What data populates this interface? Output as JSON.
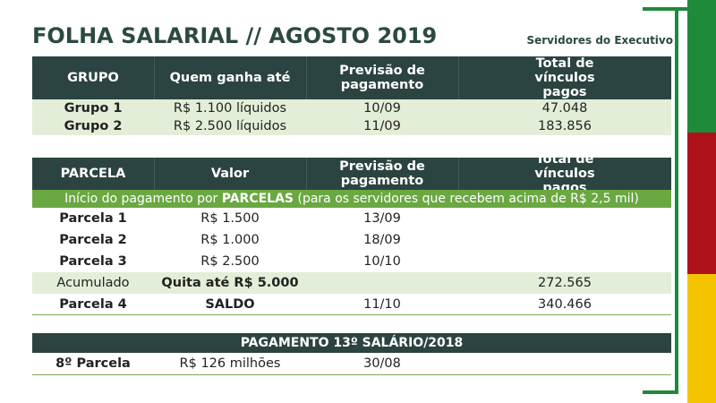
{
  "title": "FOLHA SALARIAL // AGOSTO 2019",
  "subtitle": "Servidores do Executivo",
  "colors": {
    "header_bg": "#2c4441",
    "row_highlight": "#e3eed8",
    "banner_bg": "#6aa842",
    "title_color": "#2c4a3e",
    "flag_green": "#1f8a3a",
    "flag_red": "#b0121b",
    "flag_yellow": "#f5c400"
  },
  "table1": {
    "headers": [
      "GRUPO",
      "Quem ganha até",
      "Previsão de pagamento",
      "Total de vínculos pagos"
    ],
    "rows": [
      [
        "Grupo 1",
        "R$ 1.100 líquidos",
        "10/09",
        "47.048"
      ],
      [
        "Grupo 2",
        "R$ 2.500 líquidos",
        "11/09",
        "183.856"
      ]
    ]
  },
  "table2": {
    "headers": [
      "PARCELA",
      "Valor",
      "Previsão de pagamento",
      "Total de vínculos pagos"
    ],
    "banner_prefix": "Início do pagamento por ",
    "banner_bold": "PARCELAS",
    "banner_suffix": " (para os servidores que recebem acima de R$ 2,5 mil)",
    "rows": [
      [
        "Parcela 1",
        "R$ 1.500",
        "13/09",
        ""
      ],
      [
        "Parcela 2",
        "R$ 1.000",
        "18/09",
        ""
      ],
      [
        "Parcela 3",
        "R$ 2.500",
        "10/10",
        ""
      ],
      [
        "Acumulado",
        "Quita até R$ 5.000",
        "",
        "272.565"
      ],
      [
        "Parcela 4",
        "SALDO",
        "11/10",
        "340.466"
      ]
    ]
  },
  "table3": {
    "header": "PAGAMENTO 13º SALÁRIO/2018",
    "row": [
      "8º Parcela",
      "R$ 126 milhões",
      "30/08"
    ]
  }
}
